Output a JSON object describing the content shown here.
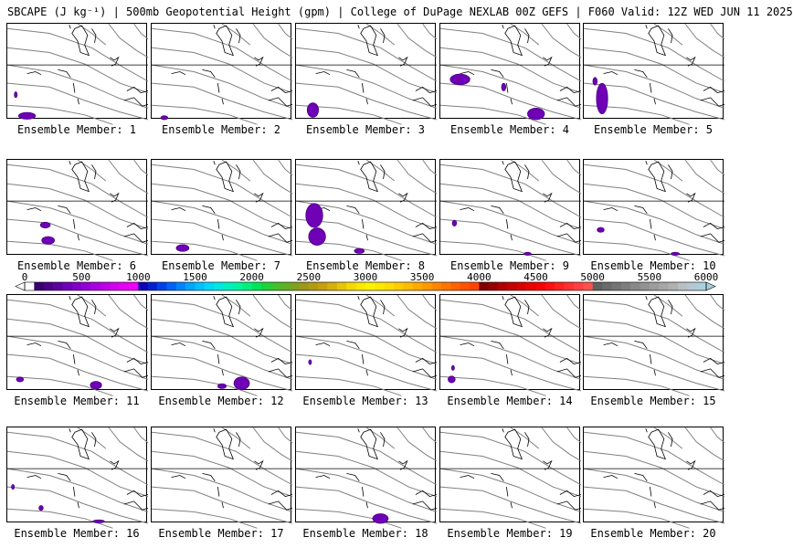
{
  "title": "SBCAPE (J kg⁻¹) | 500mb Geopotential Height (gpm) | College of DuPage NEXLAB 00Z GEFS | F060 Valid: 12Z WED JUN 11 2025",
  "member_label_prefix": "Ensemble Member:",
  "members": [
    {
      "id": "1",
      "blobs": [
        [
          0.14,
          0.96,
          0.12,
          0.07
        ],
        [
          0.06,
          0.74,
          0.02,
          0.06
        ]
      ]
    },
    {
      "id": "2",
      "blobs": [
        [
          0.09,
          0.98,
          0.05,
          0.04
        ]
      ]
    },
    {
      "id": "3",
      "blobs": [
        [
          0.12,
          0.9,
          0.08,
          0.15
        ]
      ]
    },
    {
      "id": "4",
      "blobs": [
        [
          0.14,
          0.58,
          0.14,
          0.11
        ],
        [
          0.68,
          0.94,
          0.12,
          0.12
        ],
        [
          0.45,
          0.66,
          0.03,
          0.08
        ]
      ]
    },
    {
      "id": "5",
      "blobs": [
        [
          0.13,
          0.78,
          0.08,
          0.32
        ],
        [
          0.08,
          0.6,
          0.03,
          0.08
        ]
      ]
    },
    {
      "id": "6",
      "blobs": [
        [
          0.27,
          0.68,
          0.07,
          0.06
        ],
        [
          0.29,
          0.84,
          0.09,
          0.08
        ]
      ]
    },
    {
      "id": "7",
      "blobs": [
        [
          0.22,
          0.92,
          0.09,
          0.07
        ]
      ]
    },
    {
      "id": "8",
      "blobs": [
        [
          0.13,
          0.58,
          0.12,
          0.25
        ],
        [
          0.15,
          0.8,
          0.12,
          0.18
        ],
        [
          0.45,
          0.95,
          0.07,
          0.05
        ]
      ]
    },
    {
      "id": "9",
      "blobs": [
        [
          0.1,
          0.66,
          0.03,
          0.06
        ],
        [
          0.62,
          0.98,
          0.05,
          0.03
        ]
      ]
    },
    {
      "id": "10",
      "blobs": [
        [
          0.12,
          0.73,
          0.05,
          0.05
        ],
        [
          0.65,
          0.98,
          0.06,
          0.03
        ]
      ]
    },
    {
      "id": "11",
      "blobs": [
        [
          0.09,
          0.88,
          0.05,
          0.05
        ],
        [
          0.63,
          0.94,
          0.08,
          0.08
        ]
      ]
    },
    {
      "id": "12",
      "blobs": [
        [
          0.64,
          0.92,
          0.11,
          0.13
        ],
        [
          0.5,
          0.95,
          0.06,
          0.05
        ]
      ]
    },
    {
      "id": "13",
      "blobs": [
        [
          0.1,
          0.7,
          0.02,
          0.05
        ]
      ]
    },
    {
      "id": "14",
      "blobs": [
        [
          0.08,
          0.88,
          0.05,
          0.07
        ],
        [
          0.09,
          0.76,
          0.02,
          0.05
        ]
      ]
    },
    {
      "id": "15",
      "blobs": []
    },
    {
      "id": "16",
      "blobs": [
        [
          0.04,
          0.62,
          0.02,
          0.05
        ],
        [
          0.24,
          0.84,
          0.03,
          0.05
        ],
        [
          0.65,
          0.98,
          0.08,
          0.03
        ]
      ]
    },
    {
      "id": "17",
      "blobs": []
    },
    {
      "id": "18",
      "blobs": [
        [
          0.6,
          0.95,
          0.11,
          0.1
        ]
      ]
    },
    {
      "id": "19",
      "blobs": []
    },
    {
      "id": "20",
      "blobs": []
    }
  ],
  "colorbar": {
    "ticks": [
      "0",
      "500",
      "1000",
      "1500",
      "2000",
      "2500",
      "3000",
      "3500",
      "4000",
      "4500",
      "5000",
      "5500",
      "6000"
    ],
    "colors": [
      "#ffffff",
      "#3a006e",
      "#4b0086",
      "#5c009e",
      "#6e00b5",
      "#8000c8",
      "#9300d6",
      "#a800e0",
      "#bd00e8",
      "#d200ef",
      "#e400f3",
      "#f000f6",
      "#1000b4",
      "#0020d0",
      "#0040e8",
      "#0062f6",
      "#0084ff",
      "#00a4ff",
      "#00c0ff",
      "#00d8f6",
      "#00e8e0",
      "#00f0c0",
      "#00f4a0",
      "#00f07c",
      "#00e458",
      "#1ed23a",
      "#3ec22e",
      "#5eb024",
      "#7ea21e",
      "#9c9818",
      "#b49a14",
      "#c6a010",
      "#d8b00c",
      "#e8c408",
      "#f4d804",
      "#fce800",
      "#fff200",
      "#ffe800",
      "#ffdc00",
      "#ffcc00",
      "#ffbc00",
      "#ffaa00",
      "#ff9800",
      "#ff8600",
      "#ff7400",
      "#ff6200",
      "#ff5200",
      "#ff4400",
      "#800000",
      "#980000",
      "#b00000",
      "#c40000",
      "#d80000",
      "#ea0000",
      "#f80000",
      "#ff1010",
      "#ff2020",
      "#ff3030",
      "#ff4040",
      "#ff5050",
      "#606060",
      "#6a6a6a",
      "#747474",
      "#7e7e7e",
      "#888888",
      "#929292",
      "#9c9c9c",
      "#a6a6a6",
      "#b0b0b0",
      "#b8c0c4",
      "#b4c8d0",
      "#aacfdc"
    ]
  }
}
